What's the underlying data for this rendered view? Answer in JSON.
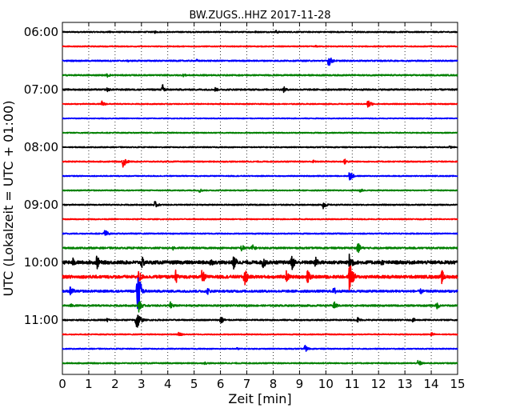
{
  "chart_data": {
    "type": "line",
    "title": "BW.ZUGS..HHZ 2017-11-28",
    "xlabel": "Zeit  [min]",
    "ylabel": "UTC (Lokalzeit = UTC + 01:00)",
    "xlim": [
      0,
      15
    ],
    "x_ticks": [
      "0",
      "1",
      "2",
      "3",
      "4",
      "5",
      "6",
      "7",
      "8",
      "9",
      "10",
      "11",
      "12",
      "13",
      "14",
      "15"
    ],
    "y_tick_labels": [
      {
        "row": 0,
        "label": "06:00"
      },
      {
        "row": 4,
        "label": "07:00"
      },
      {
        "row": 8,
        "label": "08:00"
      },
      {
        "row": 12,
        "label": "09:00"
      },
      {
        "row": 16,
        "label": "10:00"
      },
      {
        "row": 20,
        "label": "11:00"
      }
    ],
    "grid": "vertical dotted at each minute",
    "colors": [
      "#000000",
      "#ff0000",
      "#0000ff",
      "#008000"
    ],
    "series": [
      {
        "start": "06:00",
        "base_noise": 0.7,
        "events": [
          {
            "t": 1.8,
            "amp": 1.5
          },
          {
            "t": 3.5,
            "amp": 2
          },
          {
            "t": 7.3,
            "amp": 1.5
          },
          {
            "t": 8.1,
            "amp": 2.5
          },
          {
            "t": 11.1,
            "amp": 1.5
          }
        ]
      },
      {
        "start": "06:15",
        "base_noise": 0.6,
        "events": [
          {
            "t": 9.6,
            "amp": 1.5
          }
        ]
      },
      {
        "start": "06:30",
        "base_noise": 0.8,
        "events": [
          {
            "t": 2.5,
            "amp": 1.5
          },
          {
            "t": 5.1,
            "amp": 2
          },
          {
            "t": 10.1,
            "amp": 8
          }
        ]
      },
      {
        "start": "06:45",
        "base_noise": 0.8,
        "events": [
          {
            "t": 1.7,
            "amp": 3
          },
          {
            "t": 4.6,
            "amp": 2.5
          }
        ]
      },
      {
        "start": "07:00",
        "base_noise": 0.9,
        "events": [
          {
            "t": 1.7,
            "amp": 3
          },
          {
            "t": 3.8,
            "amp": 7
          },
          {
            "t": 5.8,
            "amp": 3
          },
          {
            "t": 8.4,
            "amp": 4
          }
        ]
      },
      {
        "start": "07:15",
        "base_noise": 0.6,
        "events": [
          {
            "t": 1.5,
            "amp": 4
          },
          {
            "t": 11.6,
            "amp": 6
          }
        ]
      },
      {
        "start": "07:30",
        "base_noise": 0.5,
        "events": []
      },
      {
        "start": "07:45",
        "base_noise": 0.6,
        "events": []
      },
      {
        "start": "08:00",
        "base_noise": 0.6,
        "events": [
          {
            "t": 14.7,
            "amp": 2
          }
        ]
      },
      {
        "start": "08:15",
        "base_noise": 0.7,
        "events": [
          {
            "t": 2.3,
            "amp": 8
          },
          {
            "t": 9.5,
            "amp": 2.5
          },
          {
            "t": 10.7,
            "amp": 4
          }
        ]
      },
      {
        "start": "08:30",
        "base_noise": 0.6,
        "events": [
          {
            "t": 10.9,
            "amp": 7
          }
        ]
      },
      {
        "start": "08:45",
        "base_noise": 0.6,
        "events": [
          {
            "t": 5.2,
            "amp": 3
          },
          {
            "t": 11.3,
            "amp": 3
          }
        ]
      },
      {
        "start": "09:00",
        "base_noise": 0.7,
        "events": [
          {
            "t": 3.5,
            "amp": 5
          },
          {
            "t": 9.9,
            "amp": 5
          }
        ]
      },
      {
        "start": "09:15",
        "base_noise": 0.6,
        "events": []
      },
      {
        "start": "09:30",
        "base_noise": 0.7,
        "events": [
          {
            "t": 1.6,
            "amp": 6
          }
        ]
      },
      {
        "start": "09:45",
        "base_noise": 1.0,
        "events": [
          {
            "t": 6.8,
            "amp": 5
          },
          {
            "t": 7.2,
            "amp": 5
          },
          {
            "t": 11.2,
            "amp": 8
          },
          {
            "t": 4.2,
            "amp": 3
          }
        ]
      },
      {
        "start": "10:00",
        "base_noise": 2.0,
        "events": [
          {
            "t": 0.4,
            "amp": 6
          },
          {
            "t": 1.3,
            "amp": 10
          },
          {
            "t": 3.0,
            "amp": 9
          },
          {
            "t": 5.6,
            "amp": 7
          },
          {
            "t": 6.5,
            "amp": 10
          },
          {
            "t": 7.6,
            "amp": 9
          },
          {
            "t": 8.7,
            "amp": 11
          },
          {
            "t": 9.6,
            "amp": 8
          },
          {
            "t": 10.9,
            "amp": 14
          },
          {
            "t": 12.1,
            "amp": 5
          }
        ]
      },
      {
        "start": "10:15",
        "base_noise": 1.8,
        "events": [
          {
            "t": 2.9,
            "amp": 9
          },
          {
            "t": 4.3,
            "amp": 9
          },
          {
            "t": 5.3,
            "amp": 10
          },
          {
            "t": 6.9,
            "amp": 14
          },
          {
            "t": 8.5,
            "amp": 8
          },
          {
            "t": 9.3,
            "amp": 9
          },
          {
            "t": 10.9,
            "amp": 22
          },
          {
            "t": 14.4,
            "amp": 9
          }
        ]
      },
      {
        "start": "10:30",
        "base_noise": 1.3,
        "events": [
          {
            "t": 0.3,
            "amp": 7
          },
          {
            "t": 2.85,
            "amp": 30
          },
          {
            "t": 5.5,
            "amp": 5
          },
          {
            "t": 10.3,
            "amp": 6
          },
          {
            "t": 13.6,
            "amp": 4
          }
        ]
      },
      {
        "start": "10:45",
        "base_noise": 1.0,
        "events": [
          {
            "t": 0.3,
            "amp": 3
          },
          {
            "t": 2.9,
            "amp": 8
          },
          {
            "t": 4.1,
            "amp": 5
          },
          {
            "t": 10.3,
            "amp": 6
          },
          {
            "t": 14.2,
            "amp": 5
          }
        ]
      },
      {
        "start": "11:00",
        "base_noise": 0.8,
        "events": [
          {
            "t": 1.7,
            "amp": 3
          },
          {
            "t": 2.8,
            "amp": 16
          },
          {
            "t": 6.0,
            "amp": 6
          },
          {
            "t": 11.2,
            "amp": 4
          },
          {
            "t": 13.3,
            "amp": 3
          }
        ]
      },
      {
        "start": "11:15",
        "base_noise": 0.6,
        "events": [
          {
            "t": 4.4,
            "amp": 4
          },
          {
            "t": 14.0,
            "amp": 3
          }
        ]
      },
      {
        "start": "11:30",
        "base_noise": 0.6,
        "events": [
          {
            "t": 6.6,
            "amp": 2
          },
          {
            "t": 9.2,
            "amp": 5
          }
        ]
      },
      {
        "start": "11:45",
        "base_noise": 0.7,
        "events": [
          {
            "t": 5.4,
            "amp": 2
          },
          {
            "t": 13.5,
            "amp": 5
          }
        ]
      }
    ]
  }
}
